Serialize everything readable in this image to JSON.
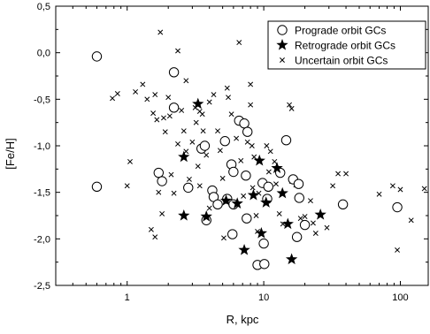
{
  "chart_data": {
    "type": "scatter",
    "xlabel": "R, kpc",
    "ylabel": "[Fe/H]",
    "xscale": "log",
    "xlim": [
      0.3,
      160
    ],
    "ylim": [
      -2.5,
      0.5
    ],
    "xticks": [
      {
        "value": 1,
        "label": "1"
      },
      {
        "value": 10,
        "label": "10"
      },
      {
        "value": 100,
        "label": "100"
      }
    ],
    "yticks": [
      {
        "value": 0.5,
        "label": "0,5"
      },
      {
        "value": 0,
        "label": "0,0"
      },
      {
        "value": -0.5,
        "label": "-0,5"
      },
      {
        "value": -1,
        "label": "-1,0"
      },
      {
        "value": -1.5,
        "label": "-1,5"
      },
      {
        "value": -2,
        "label": "-2,0"
      },
      {
        "value": -2.5,
        "label": "-2,5"
      }
    ],
    "grid": false,
    "legend_position": "top-right",
    "series": [
      {
        "name": "Prograde orbit GCs",
        "marker": "open-circle",
        "points": [
          [
            0.6,
            -0.04
          ],
          [
            0.6,
            -1.44
          ],
          [
            2.2,
            -0.21
          ],
          [
            2.2,
            -0.59
          ],
          [
            1.7,
            -1.29
          ],
          [
            1.8,
            -1.38
          ],
          [
            2.8,
            -1.45
          ],
          [
            3.5,
            -1.03
          ],
          [
            3.7,
            -1.0
          ],
          [
            3.8,
            -1.8
          ],
          [
            4.2,
            -1.48
          ],
          [
            4.3,
            -1.55
          ],
          [
            4.6,
            -1.63
          ],
          [
            5.2,
            -0.95
          ],
          [
            5.4,
            -1.57
          ],
          [
            5.8,
            -1.2
          ],
          [
            6.0,
            -1.28
          ],
          [
            6.0,
            -1.63
          ],
          [
            5.9,
            -1.95
          ],
          [
            6.6,
            -0.73
          ],
          [
            7.2,
            -0.76
          ],
          [
            7.6,
            -0.85
          ],
          [
            7.4,
            -1.32
          ],
          [
            7.5,
            -1.78
          ],
          [
            9.8,
            -1.4
          ],
          [
            10.8,
            -1.44
          ],
          [
            10.6,
            -1.57
          ],
          [
            9.0,
            -2.28
          ],
          [
            10.0,
            -2.05
          ],
          [
            10.1,
            -2.27
          ],
          [
            13.2,
            -1.29
          ],
          [
            14.6,
            -0.94
          ],
          [
            16.4,
            -1.36
          ],
          [
            18.0,
            -1.41
          ],
          [
            18.2,
            -1.56
          ],
          [
            17.5,
            -1.98
          ],
          [
            20.0,
            -1.85
          ],
          [
            38.0,
            -1.63
          ],
          [
            95.0,
            -1.66
          ]
        ]
      },
      {
        "name": "Retrograde orbit GCs",
        "marker": "filled-star",
        "points": [
          [
            3.3,
            -0.55
          ],
          [
            2.6,
            -1.12
          ],
          [
            2.6,
            -1.75
          ],
          [
            3.8,
            -1.76
          ],
          [
            5.3,
            -1.59
          ],
          [
            6.4,
            -1.62
          ],
          [
            7.2,
            -2.12
          ],
          [
            8.4,
            -1.53
          ],
          [
            9.3,
            -1.16
          ],
          [
            9.6,
            -1.94
          ],
          [
            10.4,
            -1.61
          ],
          [
            12.5,
            -1.24
          ],
          [
            13.7,
            -1.51
          ],
          [
            15.0,
            -1.84
          ],
          [
            16.0,
            -2.22
          ],
          [
            26.0,
            -1.74
          ]
        ]
      },
      {
        "name": "Uncertain orbit GCs",
        "marker": "x-cross",
        "points": [
          [
            0.78,
            -0.49
          ],
          [
            0.85,
            -0.44
          ],
          [
            1.0,
            -1.43
          ],
          [
            1.05,
            -1.17
          ],
          [
            1.15,
            -0.42
          ],
          [
            1.3,
            -0.34
          ],
          [
            1.4,
            -0.5
          ],
          [
            1.55,
            -0.65
          ],
          [
            1.6,
            -0.45
          ],
          [
            1.75,
            0.22
          ],
          [
            1.65,
            -0.72
          ],
          [
            1.85,
            -0.7
          ],
          [
            1.9,
            -0.85
          ],
          [
            1.7,
            -1.5
          ],
          [
            1.8,
            -1.73
          ],
          [
            1.5,
            -1.9
          ],
          [
            1.6,
            -1.98
          ],
          [
            2.0,
            -0.48
          ],
          [
            2.05,
            -0.68
          ],
          [
            2.1,
            -1.31
          ],
          [
            2.2,
            -1.51
          ],
          [
            2.35,
            0.02
          ],
          [
            2.35,
            -0.98
          ],
          [
            2.5,
            -0.62
          ],
          [
            2.6,
            -0.84
          ],
          [
            2.7,
            -1.06
          ],
          [
            2.7,
            -0.3
          ],
          [
            2.85,
            -1.36
          ],
          [
            3.0,
            -0.96
          ],
          [
            3.15,
            -0.59
          ],
          [
            3.2,
            -0.75
          ],
          [
            3.3,
            -1.22
          ],
          [
            3.4,
            -0.63
          ],
          [
            3.4,
            -1.43
          ],
          [
            3.55,
            -0.66
          ],
          [
            3.6,
            -0.84
          ],
          [
            3.8,
            -1.1
          ],
          [
            4.0,
            -0.53
          ],
          [
            4.0,
            -1.67
          ],
          [
            4.3,
            -0.45
          ],
          [
            4.6,
            -0.84
          ],
          [
            4.8,
            -1.05
          ],
          [
            5.0,
            -1.35
          ],
          [
            5.1,
            -1.99
          ],
          [
            5.4,
            -0.38
          ],
          [
            5.5,
            -0.48
          ],
          [
            5.8,
            -0.66
          ],
          [
            6.3,
            -0.92
          ],
          [
            6.6,
            0.11
          ],
          [
            6.8,
            -1.16
          ],
          [
            7.1,
            -1.54
          ],
          [
            7.6,
            -0.96
          ],
          [
            8.0,
            -0.34
          ],
          [
            8.0,
            -0.56
          ],
          [
            8.2,
            -1.0
          ],
          [
            8.3,
            -1.45
          ],
          [
            8.5,
            -1.12
          ],
          [
            8.8,
            -1.75
          ],
          [
            9.0,
            -1.92
          ],
          [
            9.2,
            -1.51
          ],
          [
            10.5,
            -1.0
          ],
          [
            10.9,
            -1.28
          ],
          [
            11.2,
            -1.06
          ],
          [
            12.0,
            -1.17
          ],
          [
            12.3,
            -1.41
          ],
          [
            13.0,
            -1.73
          ],
          [
            13.8,
            -1.84
          ],
          [
            15.4,
            -0.56
          ],
          [
            16.0,
            -0.6
          ],
          [
            16.0,
            -1.38
          ],
          [
            17.2,
            -1.42
          ],
          [
            18.6,
            -1.78
          ],
          [
            20.0,
            -1.76
          ],
          [
            22.0,
            -1.59
          ],
          [
            23.0,
            -1.83
          ],
          [
            24.0,
            -1.94
          ],
          [
            29.0,
            -1.88
          ],
          [
            32.0,
            -1.43
          ],
          [
            35.0,
            -1.3
          ],
          [
            40.0,
            -1.3
          ],
          [
            70.0,
            -1.52
          ],
          [
            88.0,
            -1.43
          ],
          [
            95.0,
            -2.12
          ],
          [
            100.0,
            -1.47
          ],
          [
            120.0,
            -1.8
          ],
          [
            150.0,
            -1.46
          ]
        ]
      }
    ]
  }
}
